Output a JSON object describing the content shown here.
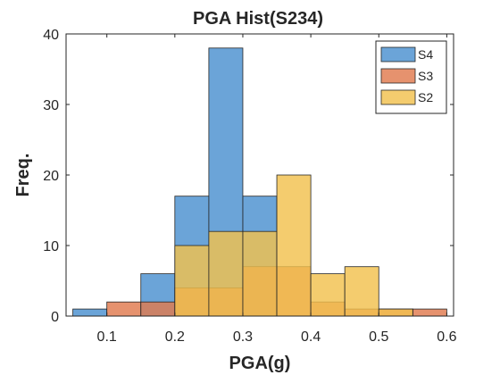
{
  "chart_data": {
    "type": "bar",
    "title": "PGA Hist(S234)",
    "xlabel": "PGA(g)",
    "ylabel": "Freq.",
    "xlim": [
      0.04,
      0.61
    ],
    "ylim": [
      0,
      40
    ],
    "xticks": [
      0.1,
      0.2,
      0.3,
      0.4,
      0.5,
      0.6
    ],
    "xtick_labels": [
      "0.1",
      "0.2",
      "0.3",
      "0.4",
      "0.5",
      "0.6"
    ],
    "yticks": [
      0,
      10,
      20,
      30,
      40
    ],
    "ytick_labels": [
      "0",
      "10",
      "20",
      "30",
      "40"
    ],
    "grid": false,
    "legend_position": "top-right",
    "legend_order": [
      "S4",
      "S3",
      "S2"
    ],
    "series": [
      {
        "name": "S4",
        "color": "#4A90CF",
        "bins": [
          {
            "start": 0.05,
            "end": 0.1,
            "count": 1
          },
          {
            "start": 0.15,
            "end": 0.2,
            "count": 6
          },
          {
            "start": 0.2,
            "end": 0.25,
            "count": 17
          },
          {
            "start": 0.25,
            "end": 0.3,
            "count": 38
          },
          {
            "start": 0.3,
            "end": 0.35,
            "count": 17
          }
        ]
      },
      {
        "name": "S3",
        "color": "#E07A4E",
        "bins": [
          {
            "start": 0.1,
            "end": 0.15,
            "count": 2
          },
          {
            "start": 0.15,
            "end": 0.2,
            "count": 2
          },
          {
            "start": 0.2,
            "end": 0.25,
            "count": 4
          },
          {
            "start": 0.25,
            "end": 0.3,
            "count": 4
          },
          {
            "start": 0.3,
            "end": 0.35,
            "count": 7
          },
          {
            "start": 0.35,
            "end": 0.4,
            "count": 7
          },
          {
            "start": 0.4,
            "end": 0.45,
            "count": 2
          },
          {
            "start": 0.45,
            "end": 0.5,
            "count": 1
          },
          {
            "start": 0.5,
            "end": 0.55,
            "count": 1
          },
          {
            "start": 0.55,
            "end": 0.6,
            "count": 1
          }
        ]
      },
      {
        "name": "S2",
        "color": "#F2C14E",
        "bins": [
          {
            "start": 0.2,
            "end": 0.25,
            "count": 10
          },
          {
            "start": 0.25,
            "end": 0.3,
            "count": 12
          },
          {
            "start": 0.3,
            "end": 0.35,
            "count": 12
          },
          {
            "start": 0.35,
            "end": 0.4,
            "count": 20
          },
          {
            "start": 0.4,
            "end": 0.45,
            "count": 6
          },
          {
            "start": 0.45,
            "end": 0.5,
            "count": 7
          },
          {
            "start": 0.5,
            "end": 0.55,
            "count": 1
          }
        ]
      }
    ]
  }
}
